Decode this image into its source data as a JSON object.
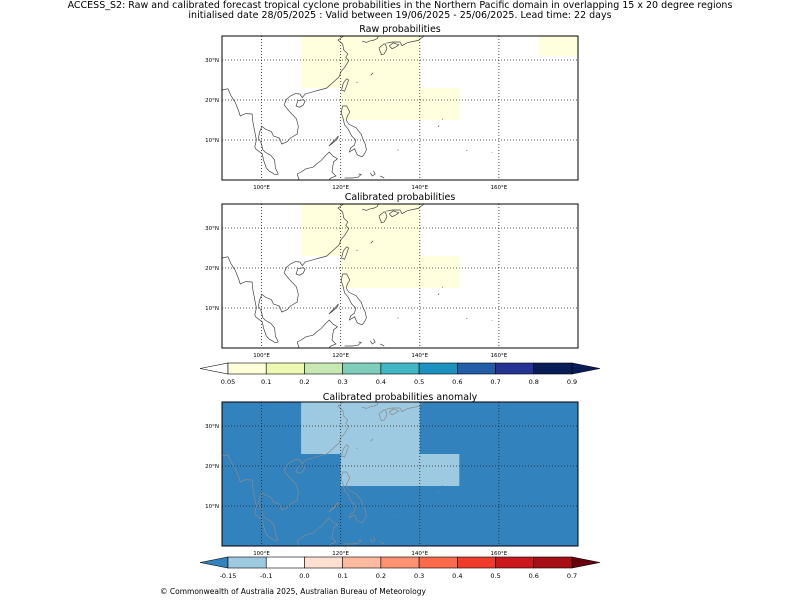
{
  "figure": {
    "title_line1": "ACCESS_S2: Raw and calibrated forecast tropical cyclone probabilities in the Northern Pacific domain in overlapping 15 x 20 degree regions",
    "title_line2": "initialised date 28/05/2025 :  Valid between 19/06/2025 - 25/06/2025. Lead time: 22 days",
    "footer": "© Commonwealth of Australia 2025, Australian Bureau of Meteorology"
  },
  "map_extent": {
    "lon_min": 90,
    "lon_max": 180,
    "lat_min": 0,
    "lat_max": 36
  },
  "axes": {
    "lon_ticks": [
      {
        "value": 100,
        "label": "100°E"
      },
      {
        "value": 120,
        "label": "120°E"
      },
      {
        "value": 140,
        "label": "140°E"
      },
      {
        "value": 160,
        "label": "160°E"
      }
    ],
    "lat_ticks": [
      {
        "value": 10,
        "label": "10°N"
      },
      {
        "value": 20,
        "label": "20°N"
      },
      {
        "value": 30,
        "label": "30°N"
      }
    ]
  },
  "panels": [
    {
      "id": "raw",
      "title": "Raw probabilities",
      "background": "#ffffff",
      "regions": [
        {
          "lon": [
            110,
            120
          ],
          "lat": [
            23,
            36
          ],
          "color": "#ffffdd"
        },
        {
          "lon": [
            120,
            140
          ],
          "lat": [
            15,
            36
          ],
          "color": "#ffffdd"
        },
        {
          "lon": [
            140,
            150
          ],
          "lat": [
            15,
            23
          ],
          "color": "#ffffdd"
        },
        {
          "lon": [
            170,
            180
          ],
          "lat": [
            31,
            36
          ],
          "color": "#ffffdd"
        }
      ]
    },
    {
      "id": "calibrated",
      "title": "Calibrated probabilities",
      "background": "#ffffff",
      "regions": [
        {
          "lon": [
            110,
            120
          ],
          "lat": [
            23,
            36
          ],
          "color": "#ffffdd"
        },
        {
          "lon": [
            120,
            140
          ],
          "lat": [
            15,
            36
          ],
          "color": "#ffffdd"
        },
        {
          "lon": [
            140,
            150
          ],
          "lat": [
            15,
            23
          ],
          "color": "#ffffdd"
        }
      ]
    },
    {
      "id": "anomaly",
      "title": "Calibrated probabilities anomaly",
      "background": "#3282bd",
      "regions": [
        {
          "lon": [
            110,
            120
          ],
          "lat": [
            29,
            36
          ],
          "color": "#9ecae1"
        },
        {
          "lon": [
            110,
            140
          ],
          "lat": [
            23,
            29
          ],
          "color": "#9ecae1"
        },
        {
          "lon": [
            120,
            140
          ],
          "lat": [
            29,
            36
          ],
          "color": "#9ecae1"
        },
        {
          "lon": [
            120,
            150
          ],
          "lat": [
            15,
            23
          ],
          "color": "#9ecae1"
        }
      ]
    }
  ],
  "colorbars": {
    "probability": {
      "labels": [
        "0.05",
        "0.1",
        "0.2",
        "0.3",
        "0.4",
        "0.5",
        "0.6",
        "0.7",
        "0.8",
        "0.9"
      ],
      "colors": [
        "#ffffd9",
        "#edf8b1",
        "#c7e9b4",
        "#7fcdbb",
        "#41b6c4",
        "#1d91c0",
        "#225ea8",
        "#253494",
        "#081d58"
      ],
      "under": "#ffffff",
      "over": "#081d58"
    },
    "anomaly": {
      "labels": [
        "-0.15",
        "-0.1",
        "0.0",
        "0.1",
        "0.2",
        "0.3",
        "0.4",
        "0.5",
        "0.6",
        "0.7"
      ],
      "colors": [
        "#9ecae1",
        "#ffffff",
        "#fee0d2",
        "#fcbba1",
        "#fc9272",
        "#fb6a4a",
        "#ef3b2c",
        "#cb181d",
        "#a50f15"
      ],
      "under": "#3182bd",
      "over": "#67000d"
    }
  }
}
